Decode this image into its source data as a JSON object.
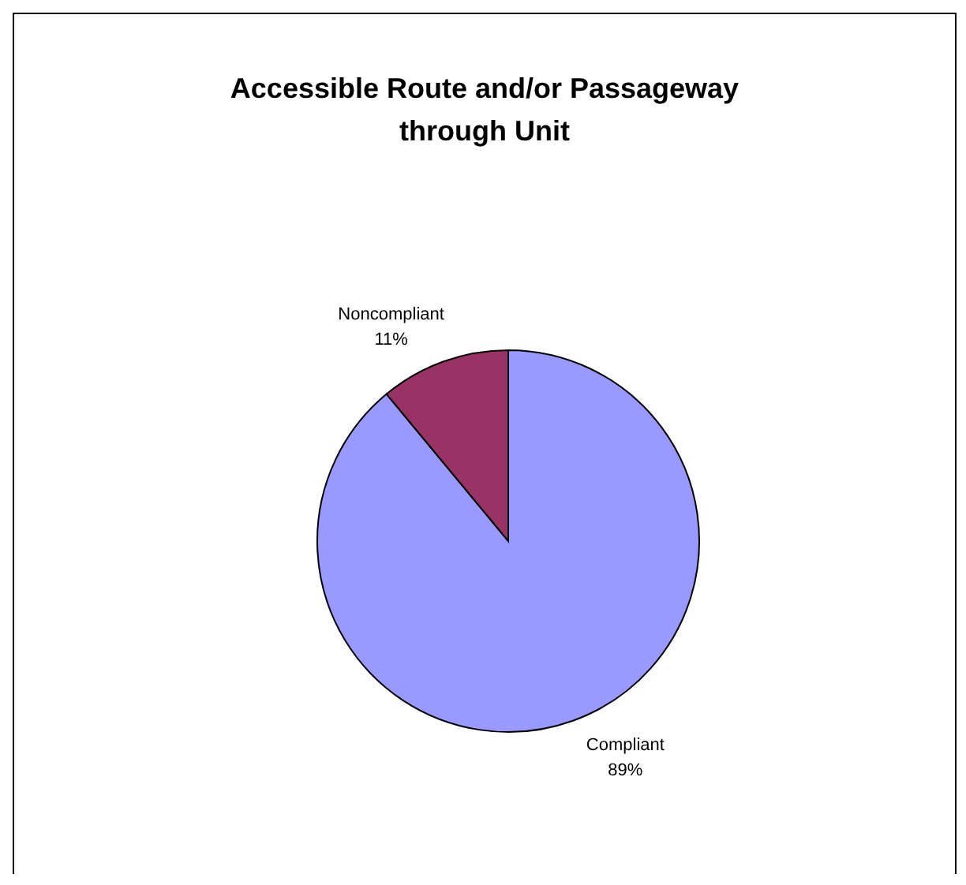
{
  "chart_data": {
    "type": "pie",
    "title": "Accessible Route and/or Passageway through Unit",
    "categories": [
      "Compliant",
      "Noncompliant"
    ],
    "values": [
      89,
      11
    ],
    "colors": [
      "#9999ff",
      "#993366"
    ],
    "value_labels": [
      "89%",
      "11%"
    ],
    "legend": false
  }
}
